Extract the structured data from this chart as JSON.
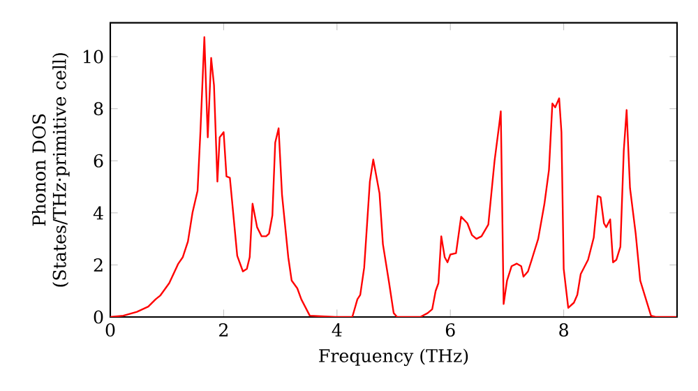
{
  "chart_data": {
    "type": "line",
    "xlabel": "Frequency (THz)",
    "ylabel": "Phonon DOS (States/THz·primitive cell)",
    "xlim": [
      0,
      10
    ],
    "ylim": [
      0,
      11.3
    ],
    "xticks": [
      0,
      2,
      4,
      6,
      8
    ],
    "yticks": [
      0,
      2,
      4,
      6,
      8,
      10
    ],
    "grid": false,
    "marker": "none",
    "line_style": "solid",
    "series": [
      {
        "color": "#ff0000",
        "x": [
          0,
          0.23,
          0.47,
          0.67,
          0.8,
          0.88,
          1.04,
          1.2,
          1.28,
          1.37,
          1.45,
          1.54,
          1.59,
          1.66,
          1.72,
          1.78,
          1.83,
          1.89,
          1.93,
          2.0,
          2.05,
          2.11,
          2.24,
          2.34,
          2.41,
          2.46,
          2.51,
          2.59,
          2.67,
          2.75,
          2.8,
          2.86,
          2.91,
          2.97,
          3.03,
          3.14,
          3.2,
          3.3,
          3.37,
          3.52,
          3.97,
          4.27,
          4.36,
          4.41,
          4.48,
          4.58,
          4.64,
          4.75,
          4.81,
          4.92,
          5.0,
          5.06,
          5.47,
          5.6,
          5.68,
          5.74,
          5.79,
          5.84,
          5.9,
          5.95,
          6.0,
          6.1,
          6.19,
          6.3,
          6.38,
          6.46,
          6.55,
          6.67,
          6.78,
          6.86,
          6.89,
          6.94,
          7.0,
          7.08,
          7.17,
          7.25,
          7.29,
          7.37,
          7.45,
          7.55,
          7.66,
          7.74,
          7.8,
          7.85,
          7.92,
          7.96,
          8.0,
          8.08,
          8.18,
          8.24,
          8.3,
          8.43,
          8.53,
          8.6,
          8.65,
          8.71,
          8.75,
          8.82,
          8.87,
          8.93,
          9.0,
          9.06,
          9.11,
          9.17,
          9.27,
          9.35,
          9.54,
          9.62,
          9.99
        ],
        "values": [
          0,
          0.05,
          0.2,
          0.4,
          0.68,
          0.82,
          1.3,
          2.05,
          2.3,
          2.9,
          4.0,
          4.85,
          7.1,
          10.75,
          6.9,
          9.95,
          8.9,
          5.2,
          6.9,
          7.1,
          5.4,
          5.35,
          2.35,
          1.75,
          1.85,
          2.3,
          4.35,
          3.45,
          3.1,
          3.1,
          3.2,
          3.9,
          6.7,
          7.25,
          4.7,
          2.3,
          1.4,
          1.1,
          0.68,
          0.05,
          0,
          0,
          0.68,
          0.85,
          1.9,
          5.2,
          6.05,
          4.75,
          2.8,
          1.3,
          0.15,
          0,
          0,
          0.15,
          0.3,
          1.0,
          1.3,
          3.1,
          2.3,
          2.1,
          2.4,
          2.45,
          3.85,
          3.6,
          3.15,
          3.0,
          3.1,
          3.55,
          6.0,
          7.35,
          7.9,
          0.5,
          1.4,
          1.95,
          2.05,
          1.95,
          1.55,
          1.75,
          2.3,
          3.0,
          4.35,
          5.65,
          8.2,
          8.05,
          8.4,
          7.1,
          1.85,
          0.35,
          0.55,
          0.85,
          1.65,
          2.2,
          3.05,
          4.65,
          4.6,
          3.6,
          3.45,
          3.75,
          2.1,
          2.2,
          2.7,
          6.4,
          7.95,
          4.95,
          3.2,
          1.4,
          0.05,
          0,
          0
        ]
      }
    ]
  }
}
